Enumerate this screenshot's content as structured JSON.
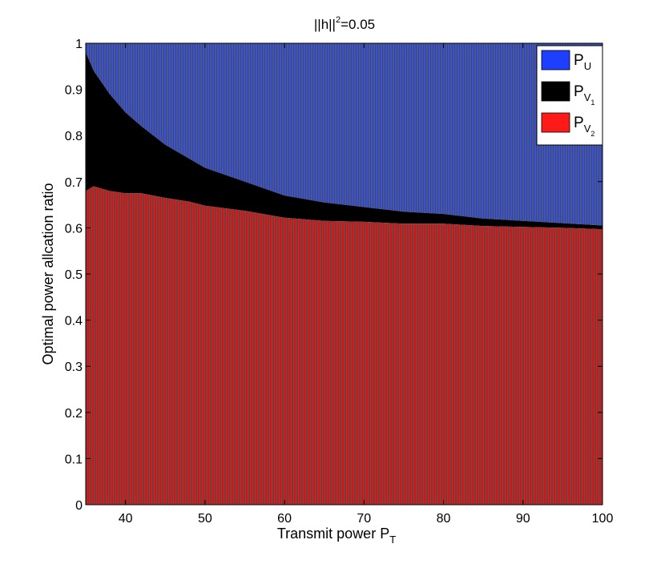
{
  "chart_data": {
    "type": "bar",
    "stacked": true,
    "title": "||h||",
    "title_sup": "2",
    "title_suffix": "=0.05",
    "xlabel": "Transmit power P",
    "xlabel_sub": "T",
    "ylabel": "Optimal power allcation ratio",
    "xlim": [
      35,
      100
    ],
    "ylim": [
      0,
      1
    ],
    "x_ticks": [
      40,
      50,
      60,
      70,
      80,
      90,
      100
    ],
    "y_ticks": [
      0,
      0.1,
      0.2,
      0.3,
      0.4,
      0.5,
      0.6,
      0.7,
      0.8,
      0.9,
      1
    ],
    "y_tick_labels": [
      "0",
      "0.1",
      "0.2",
      "0.3",
      "0.4",
      "0.5",
      "0.6",
      "0.7",
      "0.8",
      "0.9",
      "1"
    ],
    "grid": false,
    "legend_position": "top-right",
    "x": [
      35,
      36,
      38,
      40,
      42,
      45,
      48,
      50,
      55,
      60,
      65,
      70,
      75,
      80,
      85,
      90,
      95,
      100
    ],
    "series": [
      {
        "name": "P_U",
        "legend_main": "P",
        "legend_sub": "U",
        "sub2": "",
        "color": "#1f3fff",
        "values": [
          0.02,
          0.06,
          0.11,
          0.15,
          0.18,
          0.22,
          0.25,
          0.27,
          0.3,
          0.33,
          0.345,
          0.355,
          0.365,
          0.37,
          0.38,
          0.385,
          0.39,
          0.395
        ]
      },
      {
        "name": "P_V1",
        "legend_main": "P",
        "legend_sub": "V",
        "sub2": "1",
        "color": "#000000",
        "values": [
          0.3,
          0.25,
          0.21,
          0.175,
          0.145,
          0.115,
          0.093,
          0.082,
          0.063,
          0.048,
          0.04,
          0.032,
          0.026,
          0.021,
          0.016,
          0.013,
          0.01,
          0.008
        ]
      },
      {
        "name": "P_V2",
        "legend_main": "P",
        "legend_sub": "V",
        "sub2": "2",
        "color": "#ff1a1a",
        "values": [
          0.68,
          0.69,
          0.68,
          0.675,
          0.675,
          0.665,
          0.657,
          0.648,
          0.637,
          0.622,
          0.615,
          0.613,
          0.609,
          0.609,
          0.604,
          0.602,
          0.6,
          0.597
        ]
      }
    ]
  }
}
